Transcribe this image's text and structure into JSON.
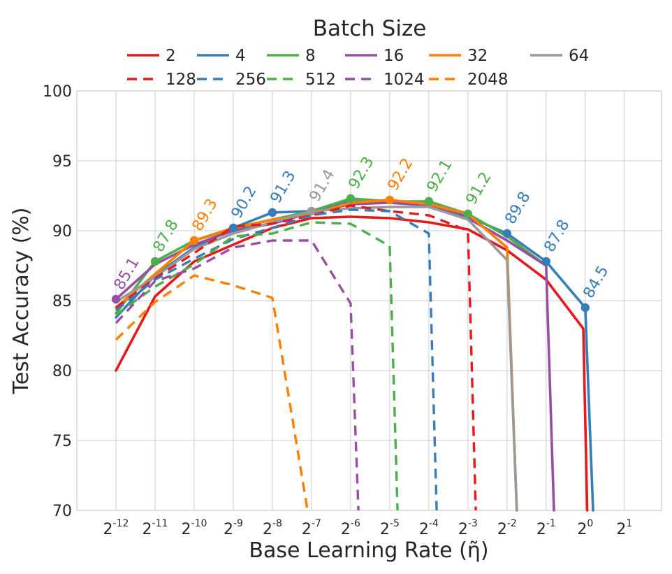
{
  "chart_data": {
    "type": "line",
    "xlabel": "Base Learning Rate ($\\tilde{\\eta}$)",
    "xlabel_text": "Base Learning Rate (",
    "xlabel_symbol": "η̃",
    "xlabel_close": ")",
    "ylabel": "Test Accuracy (%)",
    "legend_title": "Batch Size",
    "legend_position": "top",
    "grid": true,
    "x_log2": [
      -12,
      -11,
      -10,
      -9,
      -8,
      -7,
      -6,
      -5,
      -4,
      -3,
      -2,
      -1,
      0,
      1
    ],
    "x_ticks": [
      {
        "base": "2",
        "exp": "-12"
      },
      {
        "base": "2",
        "exp": "-11"
      },
      {
        "base": "2",
        "exp": "-10"
      },
      {
        "base": "2",
        "exp": "-9"
      },
      {
        "base": "2",
        "exp": "-8"
      },
      {
        "base": "2",
        "exp": "-7"
      },
      {
        "base": "2",
        "exp": "-6"
      },
      {
        "base": "2",
        "exp": "-5"
      },
      {
        "base": "2",
        "exp": "-4"
      },
      {
        "base": "2",
        "exp": "-3"
      },
      {
        "base": "2",
        "exp": "-2"
      },
      {
        "base": "2",
        "exp": "-1"
      },
      {
        "base": "2",
        "exp": "0"
      },
      {
        "base": "2",
        "exp": "1"
      }
    ],
    "xlim_log2": [
      -13,
      1.95
    ],
    "ylim": [
      70,
      100
    ],
    "y_ticks": [
      70,
      75,
      80,
      85,
      90,
      95,
      100
    ],
    "series": [
      {
        "name": "2",
        "color": "#e41a1c",
        "dash": false,
        "points": [
          [
            -12,
            80.0
          ],
          [
            -11,
            85.3
          ],
          [
            -10,
            87.8
          ],
          [
            -9,
            89.0
          ],
          [
            -8,
            90.2
          ],
          [
            -7,
            90.9
          ],
          [
            -6,
            91.0
          ],
          [
            -5,
            90.9
          ],
          [
            -4,
            90.6
          ],
          [
            -3,
            90.1
          ],
          [
            -2,
            88.6
          ],
          [
            -1,
            86.5
          ],
          [
            -0.05,
            83.0
          ],
          [
            0.05,
            70.0
          ]
        ]
      },
      {
        "name": "4",
        "color": "#377eb8",
        "dash": false,
        "points": [
          [
            -12,
            83.8
          ],
          [
            -11,
            86.8
          ],
          [
            -10,
            88.8
          ],
          [
            -9,
            90.2
          ],
          [
            -8,
            91.3
          ],
          [
            -7,
            91.4
          ],
          [
            -6,
            92.1
          ],
          [
            -5,
            92.0
          ],
          [
            -4,
            91.9
          ],
          [
            -3,
            91.0
          ],
          [
            -2,
            89.8
          ],
          [
            -1,
            87.8
          ],
          [
            0,
            84.5
          ],
          [
            0.2,
            70.0
          ]
        ]
      },
      {
        "name": "8",
        "color": "#4daf4a",
        "dash": false,
        "points": [
          [
            -12,
            84.1
          ],
          [
            -11,
            87.8
          ],
          [
            -10,
            89.3
          ],
          [
            -9,
            90.1
          ],
          [
            -8,
            90.8
          ],
          [
            -7,
            91.4
          ],
          [
            -6,
            92.3
          ],
          [
            -5,
            92.1
          ],
          [
            -4,
            92.1
          ],
          [
            -3,
            91.2
          ],
          [
            -2,
            89.6
          ],
          [
            -1,
            87.5
          ]
        ]
      },
      {
        "name": "16",
        "color": "#984ea3",
        "dash": false,
        "points": [
          [
            -12,
            85.1
          ],
          [
            -11,
            87.6
          ],
          [
            -10,
            89.0
          ],
          [
            -9,
            90.0
          ],
          [
            -8,
            90.5
          ],
          [
            -7,
            91.3
          ],
          [
            -6,
            91.9
          ],
          [
            -5,
            92.0
          ],
          [
            -4,
            91.8
          ],
          [
            -3,
            90.9
          ],
          [
            -2,
            89.3
          ],
          [
            -1,
            87.5
          ],
          [
            -0.8,
            70.0
          ]
        ]
      },
      {
        "name": "32",
        "color": "#ff7f00",
        "dash": false,
        "points": [
          [
            -12,
            84.5
          ],
          [
            -11,
            86.9
          ],
          [
            -10,
            89.3
          ],
          [
            -9,
            90.2
          ],
          [
            -8,
            90.8
          ],
          [
            -7,
            91.2
          ],
          [
            -6,
            92.0
          ],
          [
            -5,
            92.2
          ],
          [
            -4,
            91.9
          ],
          [
            -3,
            91.2
          ],
          [
            -2,
            88.8
          ],
          [
            -1.75,
            70.0
          ]
        ]
      },
      {
        "name": "64",
        "color": "#999999",
        "dash": false,
        "points": [
          [
            -12,
            84.9
          ],
          [
            -11,
            86.7
          ],
          [
            -10,
            88.7
          ],
          [
            -9,
            89.8
          ],
          [
            -8,
            90.6
          ],
          [
            -7,
            91.4
          ],
          [
            -6,
            91.6
          ],
          [
            -5,
            91.7
          ],
          [
            -4,
            91.7
          ],
          [
            -3,
            90.8
          ],
          [
            -2,
            87.9
          ],
          [
            -1.75,
            70.0
          ]
        ]
      },
      {
        "name": "128",
        "color": "#e41a1c",
        "dash": true,
        "points": [
          [
            -12,
            84.5
          ],
          [
            -11,
            86.6
          ],
          [
            -10,
            88.4
          ],
          [
            -9,
            90.3
          ],
          [
            -8,
            90.5
          ],
          [
            -7,
            91.1
          ],
          [
            -6,
            91.8
          ],
          [
            -5,
            91.4
          ],
          [
            -4,
            91.1
          ],
          [
            -3,
            90.0
          ],
          [
            -2.8,
            70.0
          ]
        ]
      },
      {
        "name": "256",
        "color": "#377eb8",
        "dash": true,
        "points": [
          [
            -12,
            84.3
          ],
          [
            -11,
            86.5
          ],
          [
            -10,
            88.0
          ],
          [
            -9,
            89.4
          ],
          [
            -8,
            90.2
          ],
          [
            -7,
            91.1
          ],
          [
            -6,
            91.5
          ],
          [
            -5,
            91.4
          ],
          [
            -4,
            89.8
          ],
          [
            -3.8,
            70.0
          ]
        ]
      },
      {
        "name": "512",
        "color": "#4daf4a",
        "dash": true,
        "points": [
          [
            -12,
            84.0
          ],
          [
            -11,
            86.0
          ],
          [
            -10,
            87.6
          ],
          [
            -9,
            89.6
          ],
          [
            -8,
            89.8
          ],
          [
            -7,
            90.6
          ],
          [
            -6,
            90.5
          ],
          [
            -5,
            88.9
          ],
          [
            -4.8,
            70.0
          ]
        ]
      },
      {
        "name": "1024",
        "color": "#984ea3",
        "dash": true,
        "points": [
          [
            -12,
            83.4
          ],
          [
            -11,
            86.4
          ],
          [
            -10,
            87.3
          ],
          [
            -9,
            88.8
          ],
          [
            -8,
            89.3
          ],
          [
            -7,
            89.3
          ],
          [
            -6,
            84.8
          ],
          [
            -5.8,
            70.0
          ]
        ]
      },
      {
        "name": "2048",
        "color": "#ff7f00",
        "dash": true,
        "points": [
          [
            -12,
            82.2
          ],
          [
            -11,
            84.9
          ],
          [
            -10,
            86.8
          ],
          [
            -9,
            86.1
          ],
          [
            -8,
            85.2
          ],
          [
            -7.1,
            70.0
          ]
        ]
      }
    ],
    "markers": [
      {
        "x": -12,
        "y": 85.1,
        "series": "16"
      },
      {
        "x": -11,
        "y": 87.8,
        "series": "8"
      },
      {
        "x": -10,
        "y": 89.3,
        "series": "32"
      },
      {
        "x": -9,
        "y": 90.2,
        "series": "4"
      },
      {
        "x": -8,
        "y": 91.3,
        "series": "4"
      },
      {
        "x": -7,
        "y": 91.4,
        "series": "64"
      },
      {
        "x": -6,
        "y": 92.3,
        "series": "8"
      },
      {
        "x": -5,
        "y": 92.2,
        "series": "32"
      },
      {
        "x": -4,
        "y": 92.1,
        "series": "8"
      },
      {
        "x": -3,
        "y": 91.2,
        "series": "8"
      },
      {
        "x": -2,
        "y": 89.8,
        "series": "4"
      },
      {
        "x": -1,
        "y": 87.8,
        "series": "4"
      },
      {
        "x": 0,
        "y": 84.5,
        "series": "4"
      }
    ],
    "annotations": [
      {
        "x": -12,
        "y": 85.1,
        "text": "85.1",
        "color": "#984ea3"
      },
      {
        "x": -11,
        "y": 87.8,
        "text": "87.8",
        "color": "#4daf4a"
      },
      {
        "x": -10,
        "y": 89.3,
        "text": "89.3",
        "color": "#ff7f00"
      },
      {
        "x": -9,
        "y": 90.2,
        "text": "90.2",
        "color": "#377eb8"
      },
      {
        "x": -8,
        "y": 91.3,
        "text": "91.3",
        "color": "#377eb8"
      },
      {
        "x": -7,
        "y": 91.4,
        "text": "91.4",
        "color": "#999999"
      },
      {
        "x": -6,
        "y": 92.3,
        "text": "92.3",
        "color": "#4daf4a"
      },
      {
        "x": -5,
        "y": 92.2,
        "text": "92.2",
        "color": "#ff7f00"
      },
      {
        "x": -4,
        "y": 92.1,
        "text": "92.1",
        "color": "#4daf4a"
      },
      {
        "x": -3,
        "y": 91.2,
        "text": "91.2",
        "color": "#4daf4a"
      },
      {
        "x": -2,
        "y": 89.8,
        "text": "89.8",
        "color": "#377eb8"
      },
      {
        "x": -1,
        "y": 87.8,
        "text": "87.8",
        "color": "#377eb8"
      },
      {
        "x": 0,
        "y": 84.5,
        "text": "84.5",
        "color": "#377eb8"
      }
    ]
  }
}
